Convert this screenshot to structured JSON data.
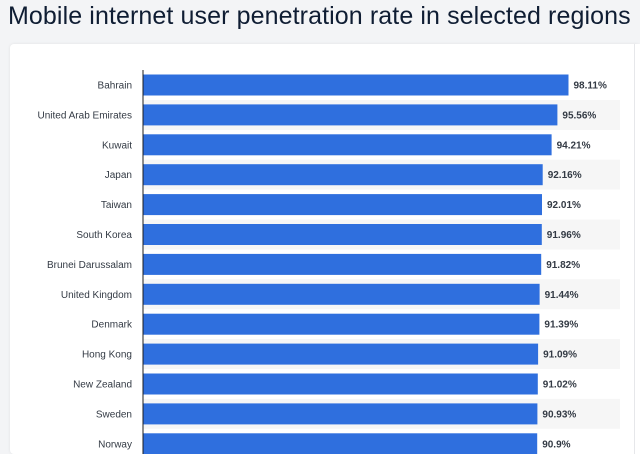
{
  "header": {
    "title": "Mobile internet user penetration rate in selected regions"
  },
  "colors": {
    "bar": "#2f6fde",
    "row_stripe": "#f6f6f6",
    "axis": "#1e1e1e"
  },
  "chart_data": {
    "type": "bar",
    "orientation": "horizontal",
    "title": "Mobile internet user penetration rate in selected regions",
    "xlabel": "",
    "ylabel": "",
    "xlim": [
      0,
      100
    ],
    "value_suffix": "%",
    "grid": false,
    "categories": [
      "Bahrain",
      "United Arab Emirates",
      "Kuwait",
      "Japan",
      "Taiwan",
      "South Korea",
      "Brunei Darussalam",
      "United Kingdom",
      "Denmark",
      "Hong Kong",
      "New Zealand",
      "Sweden",
      "Norway"
    ],
    "values": [
      98.11,
      95.56,
      94.21,
      92.16,
      92.01,
      91.96,
      91.82,
      91.44,
      91.39,
      91.09,
      91.02,
      90.93,
      90.9
    ],
    "value_labels": [
      "98.11%",
      "95.56%",
      "94.21%",
      "92.16%",
      "92.01%",
      "91.96%",
      "91.82%",
      "91.44%",
      "91.39%",
      "91.09%",
      "91.02%",
      "90.93%",
      "90.9%"
    ]
  }
}
